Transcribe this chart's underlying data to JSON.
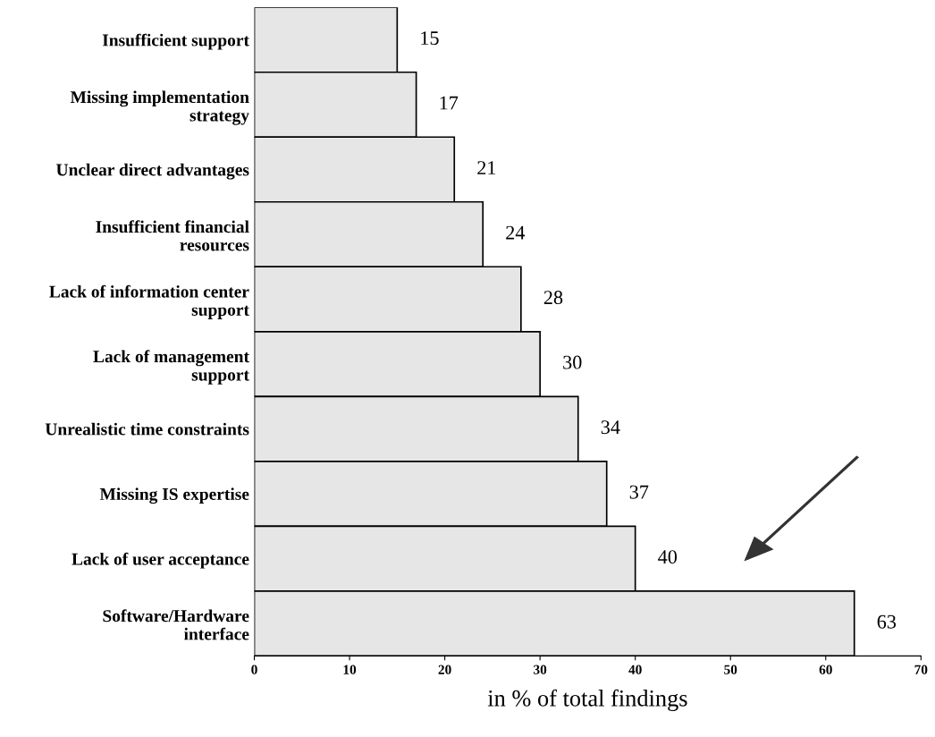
{
  "chart_data": {
    "type": "bar",
    "orientation": "horizontal",
    "xlabel": "in % of total findings",
    "categories": [
      "Insufficient support",
      "Missing implementation\nstrategy",
      "Unclear direct advantages",
      "Insufficient financial\nresources",
      "Lack of information center\nsupport",
      "Lack of management\nsupport",
      "Unrealistic time constraints",
      "Missing IS expertise",
      "Lack of user acceptance",
      "Software/Hardware\ninterface"
    ],
    "values": [
      15,
      17,
      21,
      24,
      28,
      30,
      34,
      37,
      40,
      63
    ],
    "color": "#e6e6e6",
    "data_labels": true,
    "xlim": [
      0,
      70
    ],
    "xticks": [
      0,
      10,
      20,
      30,
      40,
      50,
      60,
      70
    ],
    "grid": false,
    "legend": false
  }
}
